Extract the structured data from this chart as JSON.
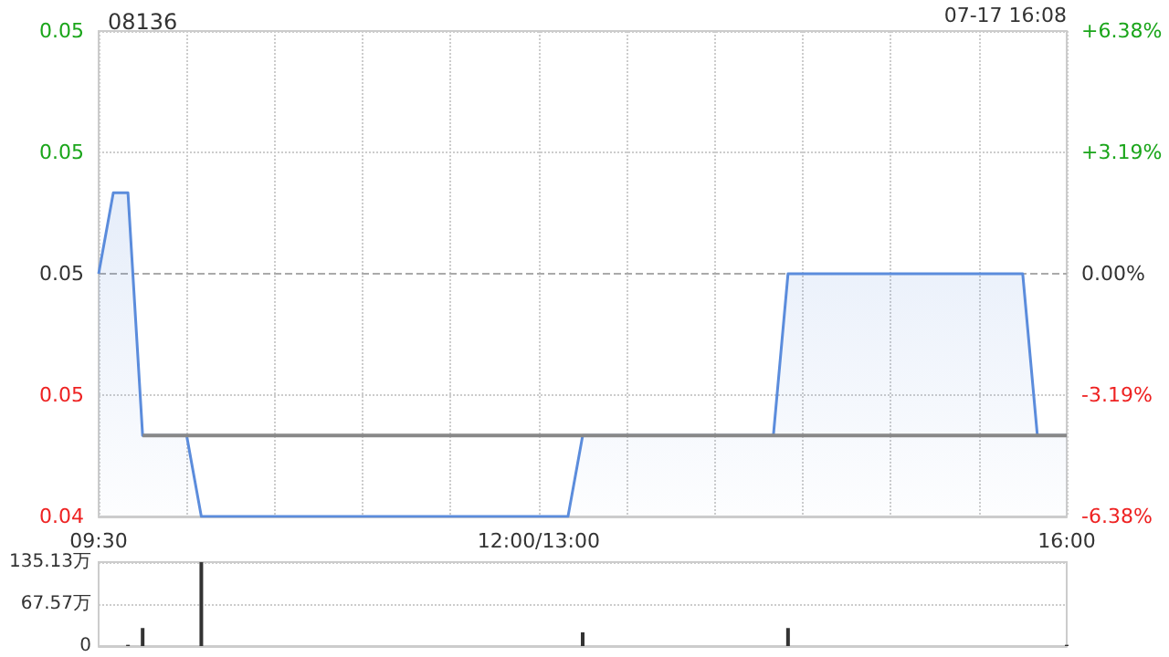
{
  "chart_data": [
    {
      "type": "area",
      "title": "08136",
      "annotations": [
        "07-17 16:08"
      ],
      "categories": [
        "09:30",
        null,
        null,
        null,
        null,
        null,
        null,
        null,
        null,
        null,
        null,
        null,
        null,
        null,
        null,
        null,
        null,
        null,
        null,
        null,
        null,
        null,
        null,
        null,
        null,
        null,
        null,
        null,
        null,
        null,
        "12:00/13:00",
        null,
        null,
        null,
        null,
        null,
        null,
        null,
        null,
        null,
        null,
        null,
        null,
        null,
        null,
        null,
        null,
        null,
        null,
        null,
        null,
        null,
        null,
        null,
        null,
        null,
        null,
        null,
        null,
        null,
        null,
        null,
        null,
        null,
        null,
        null,
        "16:00"
      ],
      "series": [
        {
          "color": "#5b8cdc",
          "values": [
            0.047,
            0.048,
            0.048,
            0.045,
            0.045,
            0.045,
            0.045,
            0.044,
            0.044,
            0.044,
            0.044,
            0.044,
            0.044,
            0.044,
            0.044,
            0.044,
            0.044,
            0.044,
            0.044,
            0.044,
            0.044,
            0.044,
            0.044,
            0.044,
            0.044,
            0.044,
            0.044,
            0.044,
            0.044,
            0.044,
            0.044,
            0.044,
            0.044,
            0.045,
            0.045,
            0.045,
            0.045,
            0.045,
            0.045,
            0.045,
            0.045,
            0.045,
            0.045,
            0.045,
            0.045,
            0.045,
            0.045,
            0.047,
            0.047,
            0.047,
            0.047,
            0.047,
            0.047,
            0.047,
            0.047,
            0.047,
            0.047,
            0.047,
            0.047,
            0.047,
            0.047,
            0.047,
            0.047,
            0.047,
            0.045,
            0.045,
            0.045
          ]
        },
        {
          "type": "line",
          "color": "#888888",
          "values": [
            null,
            null,
            null,
            0.045,
            0.045,
            0.045,
            0.045,
            0.045,
            0.045,
            0.045,
            0.045,
            0.045,
            0.045,
            0.045,
            0.045,
            0.045,
            0.045,
            0.045,
            0.045,
            0.045,
            0.045,
            0.045,
            0.045,
            0.045,
            0.045,
            0.045,
            0.045,
            0.045,
            0.045,
            0.045,
            0.045,
            0.045,
            0.045,
            0.045,
            0.045,
            0.045,
            0.045,
            0.045,
            0.045,
            0.045,
            0.045,
            0.045,
            0.045,
            0.045,
            0.045,
            0.045,
            0.045,
            0.045,
            0.045,
            0.045,
            0.045,
            0.045,
            0.045,
            0.045,
            0.045,
            0.045,
            0.045,
            0.045,
            0.045,
            0.045,
            0.045,
            0.045,
            0.045,
            0.045,
            0.045,
            0.045,
            0.045
          ]
        }
      ],
      "ylim": [
        0.044,
        0.05
      ],
      "yticks": [
        {
          "value": 0.044,
          "label": "0.04"
        },
        {
          "value": 0.0455,
          "label": "0.05"
        },
        {
          "value": 0.047,
          "label": "0.05"
        },
        {
          "value": 0.0485,
          "label": "0.05"
        },
        {
          "value": 0.05,
          "label": "0.05"
        }
      ],
      "y2lim": [
        -6.38,
        6.38
      ],
      "y2ticks": [
        {
          "value": -6.38,
          "label": "-6.38%"
        },
        {
          "value": -3.19,
          "label": "-3.19%"
        },
        {
          "value": 0,
          "label": "0.00%"
        },
        {
          "value": 3.19,
          "label": "+3.19%"
        },
        {
          "value": 6.38,
          "label": "+6.38%"
        }
      ],
      "ref_lines": [
        {
          "axis": "y",
          "value": 0.047,
          "color": "#aaaaaa",
          "line_style": "dashed"
        }
      ],
      "grid": true,
      "marker": "none"
    },
    {
      "type": "bar",
      "categories": [
        null,
        null,
        null,
        null,
        null,
        null,
        null,
        null,
        null,
        null,
        null,
        null,
        null,
        null,
        null,
        null,
        null,
        null,
        null,
        null,
        null,
        null,
        null,
        null,
        null,
        null,
        null,
        null,
        null,
        null,
        null,
        null,
        null,
        null,
        null,
        null,
        null,
        null,
        null,
        null,
        null,
        null,
        null,
        null,
        null,
        null,
        null,
        null,
        null,
        null,
        null,
        null,
        null,
        null,
        null,
        null,
        null,
        null,
        null,
        null,
        null,
        null,
        null,
        null,
        null,
        null,
        null
      ],
      "values": [
        0,
        0,
        2,
        29,
        0,
        0,
        0,
        135,
        0,
        0,
        0,
        0,
        0,
        0,
        0,
        0,
        0,
        0,
        0,
        0,
        0,
        0,
        0,
        0,
        0,
        0,
        0,
        0,
        0,
        0,
        0,
        0,
        0,
        22,
        0,
        0,
        0,
        0,
        0,
        0,
        0,
        0,
        0,
        0,
        0,
        0,
        0,
        29,
        0,
        0,
        0,
        0,
        0,
        0,
        0,
        0,
        0,
        0,
        0,
        0,
        0,
        0,
        0,
        0,
        0,
        0,
        2
      ],
      "color": "#333333",
      "ylim": [
        0,
        135.13
      ],
      "yticks": [
        {
          "value": 0,
          "label": "0"
        },
        {
          "value": 67.57,
          "label": "67.57万"
        },
        {
          "value": 135.13,
          "label": "135.13万"
        }
      ],
      "tick_labels": "y",
      "grid": "y"
    }
  ]
}
